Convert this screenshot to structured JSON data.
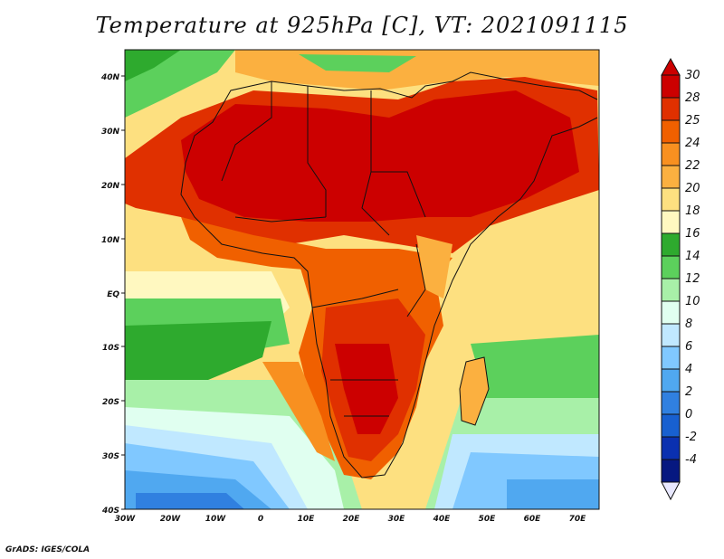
{
  "title": "Temperature at 925hPa [C], VT: 2021091115",
  "credit": "GrADS: IGES/COLA",
  "map": {
    "lon_range": [
      -30,
      75
    ],
    "lat_range": [
      -40,
      45
    ],
    "lon_ticks": [
      "30W",
      "20W",
      "10W",
      "0",
      "10E",
      "20E",
      "30E",
      "40E",
      "50E",
      "60E",
      "70E"
    ],
    "lat_ticks": [
      "40S",
      "30S",
      "20S",
      "10S",
      "EQ",
      "10N",
      "20N",
      "30N",
      "40N"
    ]
  },
  "colorbar": {
    "labels": [
      "30",
      "28",
      "25",
      "24",
      "22",
      "20",
      "18",
      "16",
      "14",
      "12",
      "10",
      "8",
      "6",
      "4",
      "2",
      "0",
      "-2",
      "-4"
    ],
    "colors": [
      "#cc0000",
      "#e03000",
      "#f06000",
      "#f89020",
      "#fbb040",
      "#fde080",
      "#fff8c0",
      "#2eaa2e",
      "#5cd05c",
      "#a8f0a8",
      "#e0fff0",
      "#c0e8ff",
      "#80c8ff",
      "#50a8f0",
      "#3080e0",
      "#1860d0",
      "#0a30b0",
      "#061880"
    ],
    "top_arrow_color": "#cc0000",
    "bottom_arrow_color": "#e8e8ff"
  }
}
